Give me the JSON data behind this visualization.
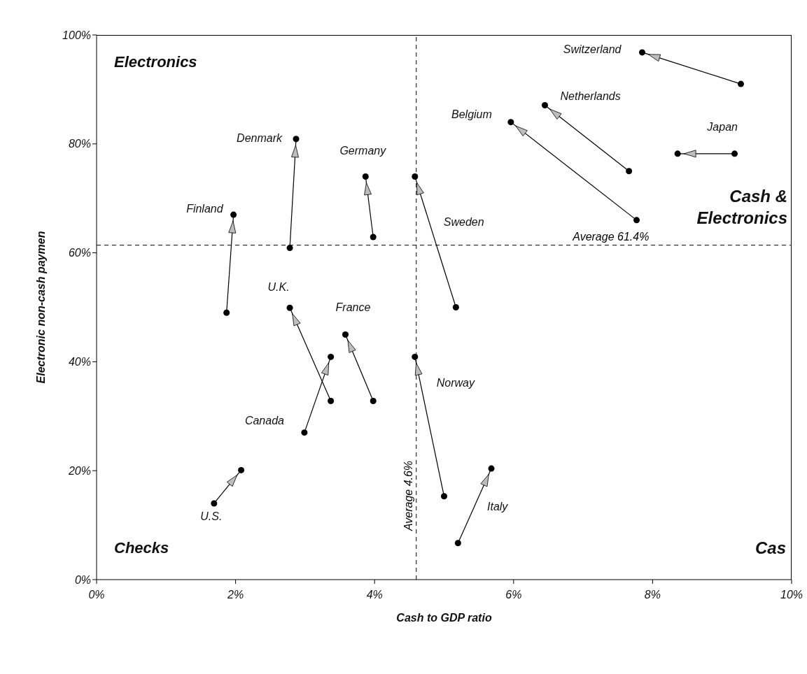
{
  "chart_data": {
    "type": "line",
    "xlabel": "Cash to GDP ratio",
    "ylabel": "Electronic non-cash paymen",
    "xlim": [
      0,
      10
    ],
    "ylim": [
      0,
      100
    ],
    "xticks": [
      {
        "value": 0,
        "label": "0%"
      },
      {
        "value": 2,
        "label": "2%"
      },
      {
        "value": 4,
        "label": "4%"
      },
      {
        "value": 6,
        "label": "6%"
      },
      {
        "value": 8,
        "label": "8%"
      },
      {
        "value": 10,
        "label": "10%"
      }
    ],
    "yticks": [
      {
        "value": 0,
        "label": "0%"
      },
      {
        "value": 20,
        "label": "20%"
      },
      {
        "value": 40,
        "label": "40%"
      },
      {
        "value": 60,
        "label": "60%"
      },
      {
        "value": 80,
        "label": "80%"
      },
      {
        "value": 100,
        "label": "100%"
      }
    ],
    "grid": false,
    "legend": false,
    "marker": "circle",
    "line_style": "solid",
    "ref_lines": [
      {
        "axis": "y",
        "value": 61.4,
        "label": "Average 61.4%",
        "line_style": "dashed"
      },
      {
        "axis": "x",
        "value": 4.6,
        "label": "Average 4.6%",
        "line_style": "dashed"
      }
    ],
    "annotations": [
      "Electronics",
      "Cash & Electronics",
      "Checks",
      "Cas"
    ],
    "series": [
      {
        "name": "Switzerland",
        "color": "#000000",
        "x": [
          9.27,
          7.85
        ],
        "values": [
          91.0,
          96.8
        ]
      },
      {
        "name": "Netherlands",
        "color": "#000000",
        "x": [
          7.66,
          6.45
        ],
        "values": [
          75.0,
          87.1
        ]
      },
      {
        "name": "Belgium",
        "color": "#000000",
        "x": [
          7.77,
          5.96
        ],
        "values": [
          66.0,
          84.0
        ]
      },
      {
        "name": "Japan",
        "color": "#000000",
        "x": [
          9.18,
          8.36
        ],
        "values": [
          78.2,
          78.2
        ]
      },
      {
        "name": "Sweden",
        "color": "#000000",
        "x": [
          5.17,
          4.58
        ],
        "values": [
          50.0,
          74.0
        ]
      },
      {
        "name": "Denmark",
        "color": "#000000",
        "x": [
          2.78,
          2.87
        ],
        "values": [
          60.9,
          80.9
        ]
      },
      {
        "name": "Germany",
        "color": "#000000",
        "x": [
          3.98,
          3.87
        ],
        "values": [
          62.9,
          74.0
        ]
      },
      {
        "name": "Finland",
        "color": "#000000",
        "x": [
          1.87,
          1.97
        ],
        "values": [
          49.0,
          67.0
        ]
      },
      {
        "name": "U.K.",
        "color": "#000000",
        "x": [
          3.37,
          2.78
        ],
        "values": [
          32.8,
          49.9
        ]
      },
      {
        "name": "France",
        "color": "#000000",
        "x": [
          3.98,
          3.58
        ],
        "values": [
          32.8,
          45.0
        ]
      },
      {
        "name": "Canada",
        "color": "#000000",
        "x": [
          2.99,
          3.37
        ],
        "values": [
          27.0,
          40.9
        ]
      },
      {
        "name": "U.S.",
        "color": "#000000",
        "x": [
          1.69,
          2.08
        ],
        "values": [
          14.0,
          20.1
        ]
      },
      {
        "name": "Norway",
        "color": "#000000",
        "x": [
          5.0,
          4.58
        ],
        "values": [
          15.3,
          40.9
        ]
      },
      {
        "name": "Italy",
        "color": "#000000",
        "x": [
          5.2,
          5.68
        ],
        "values": [
          6.7,
          20.4
        ]
      }
    ]
  }
}
